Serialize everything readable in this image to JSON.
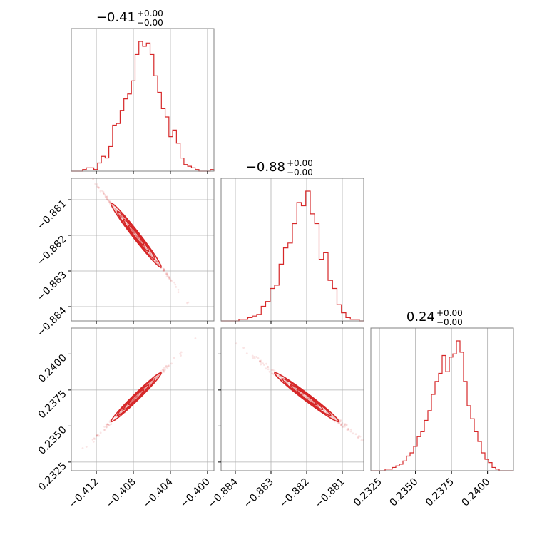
{
  "chart_data": {
    "type": "corner",
    "color": "#d62728",
    "parameters": [
      {
        "title": "−0.41",
        "upper": "+0.00",
        "lower": "−0.00",
        "range": [
          -0.4147,
          -0.3993
        ],
        "ticks": [
          -0.412,
          -0.408,
          -0.404,
          -0.4
        ],
        "tick_labels": [
          "−0.412",
          "−0.408",
          "−0.404",
          "−0.400"
        ],
        "mean": -0.4077,
        "std": 0.00135
      },
      {
        "title": "−0.88",
        "upper": "+0.00",
        "lower": "−0.00",
        "range": [
          -0.8844,
          -0.8804
        ],
        "ticks": [
          -0.884,
          -0.883,
          -0.882,
          -0.881
        ],
        "tick_labels": [
          "−0.884",
          "−0.883",
          "−0.882",
          "−0.881"
        ],
        "mean": -0.882,
        "std": 0.00045
      },
      {
        "title": "0.24",
        "upper": "+0.00",
        "lower": "−0.00",
        "range": [
          0.2319,
          0.2418
        ],
        "ticks": [
          0.2325,
          0.235,
          0.2375,
          0.24
        ],
        "tick_labels": [
          "0.2325",
          "0.2350",
          "0.2375",
          "0.2400"
        ],
        "mean": 0.237,
        "std": 0.00085
      }
    ],
    "histograms": [
      [
        0,
        0,
        0,
        1,
        2,
        2,
        1,
        5,
        9,
        8,
        15,
        28,
        29,
        37,
        44,
        47,
        55,
        71,
        79,
        76,
        78,
        71,
        58,
        48,
        38,
        33,
        21,
        25,
        17,
        8,
        4,
        3,
        2,
        1,
        0,
        0,
        0,
        1
      ],
      [
        0,
        0,
        0,
        0,
        1,
        1,
        2,
        3,
        4,
        9,
        12,
        20,
        22,
        35,
        45,
        48,
        60,
        73,
        71,
        80,
        66,
        60,
        38,
        42,
        25,
        20,
        10,
        5,
        2,
        1,
        1,
        0
      ],
      [
        0,
        0,
        0,
        0,
        1,
        1,
        2,
        3,
        4,
        6,
        9,
        11,
        15,
        21,
        24,
        31,
        37,
        47,
        55,
        60,
        71,
        61,
        70,
        72,
        80,
        73,
        55,
        40,
        32,
        24,
        18,
        11,
        7,
        5,
        2,
        1,
        0,
        0,
        0,
        0
      ]
    ],
    "correlations": {
      "0-1": -0.999,
      "0-2": 0.998,
      "1-2": -0.997
    }
  }
}
